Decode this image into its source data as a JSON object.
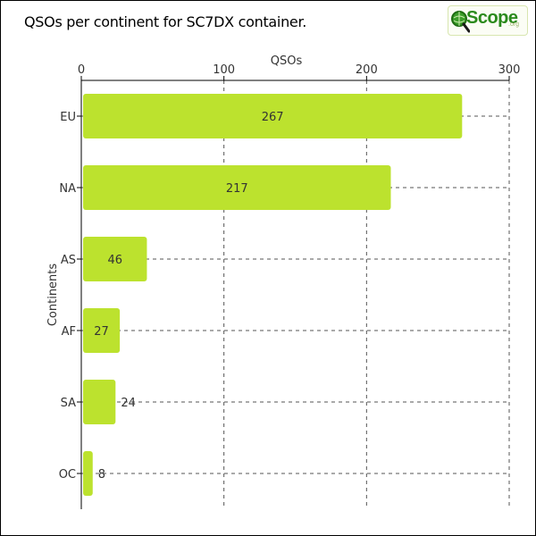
{
  "header": {
    "title": "QSOs per continent for SC7DX container.",
    "logo": {
      "name": "Scope",
      "suffix": ".org",
      "icon": "magnifier-globe-icon",
      "color": "#2a8a1c"
    }
  },
  "chart_data": {
    "type": "bar",
    "orientation": "horizontal",
    "categories": [
      "EU",
      "NA",
      "AS",
      "AF",
      "SA",
      "OC"
    ],
    "values": [
      267,
      217,
      46,
      27,
      24,
      8
    ],
    "xlabel": "QSOs",
    "ylabel": "Continents",
    "xlim": [
      0,
      300
    ],
    "xticks": [
      0,
      100,
      200,
      300
    ],
    "x_axis_position": "top",
    "grid": true,
    "bar_color": "#bce22e",
    "data_labels": true
  }
}
